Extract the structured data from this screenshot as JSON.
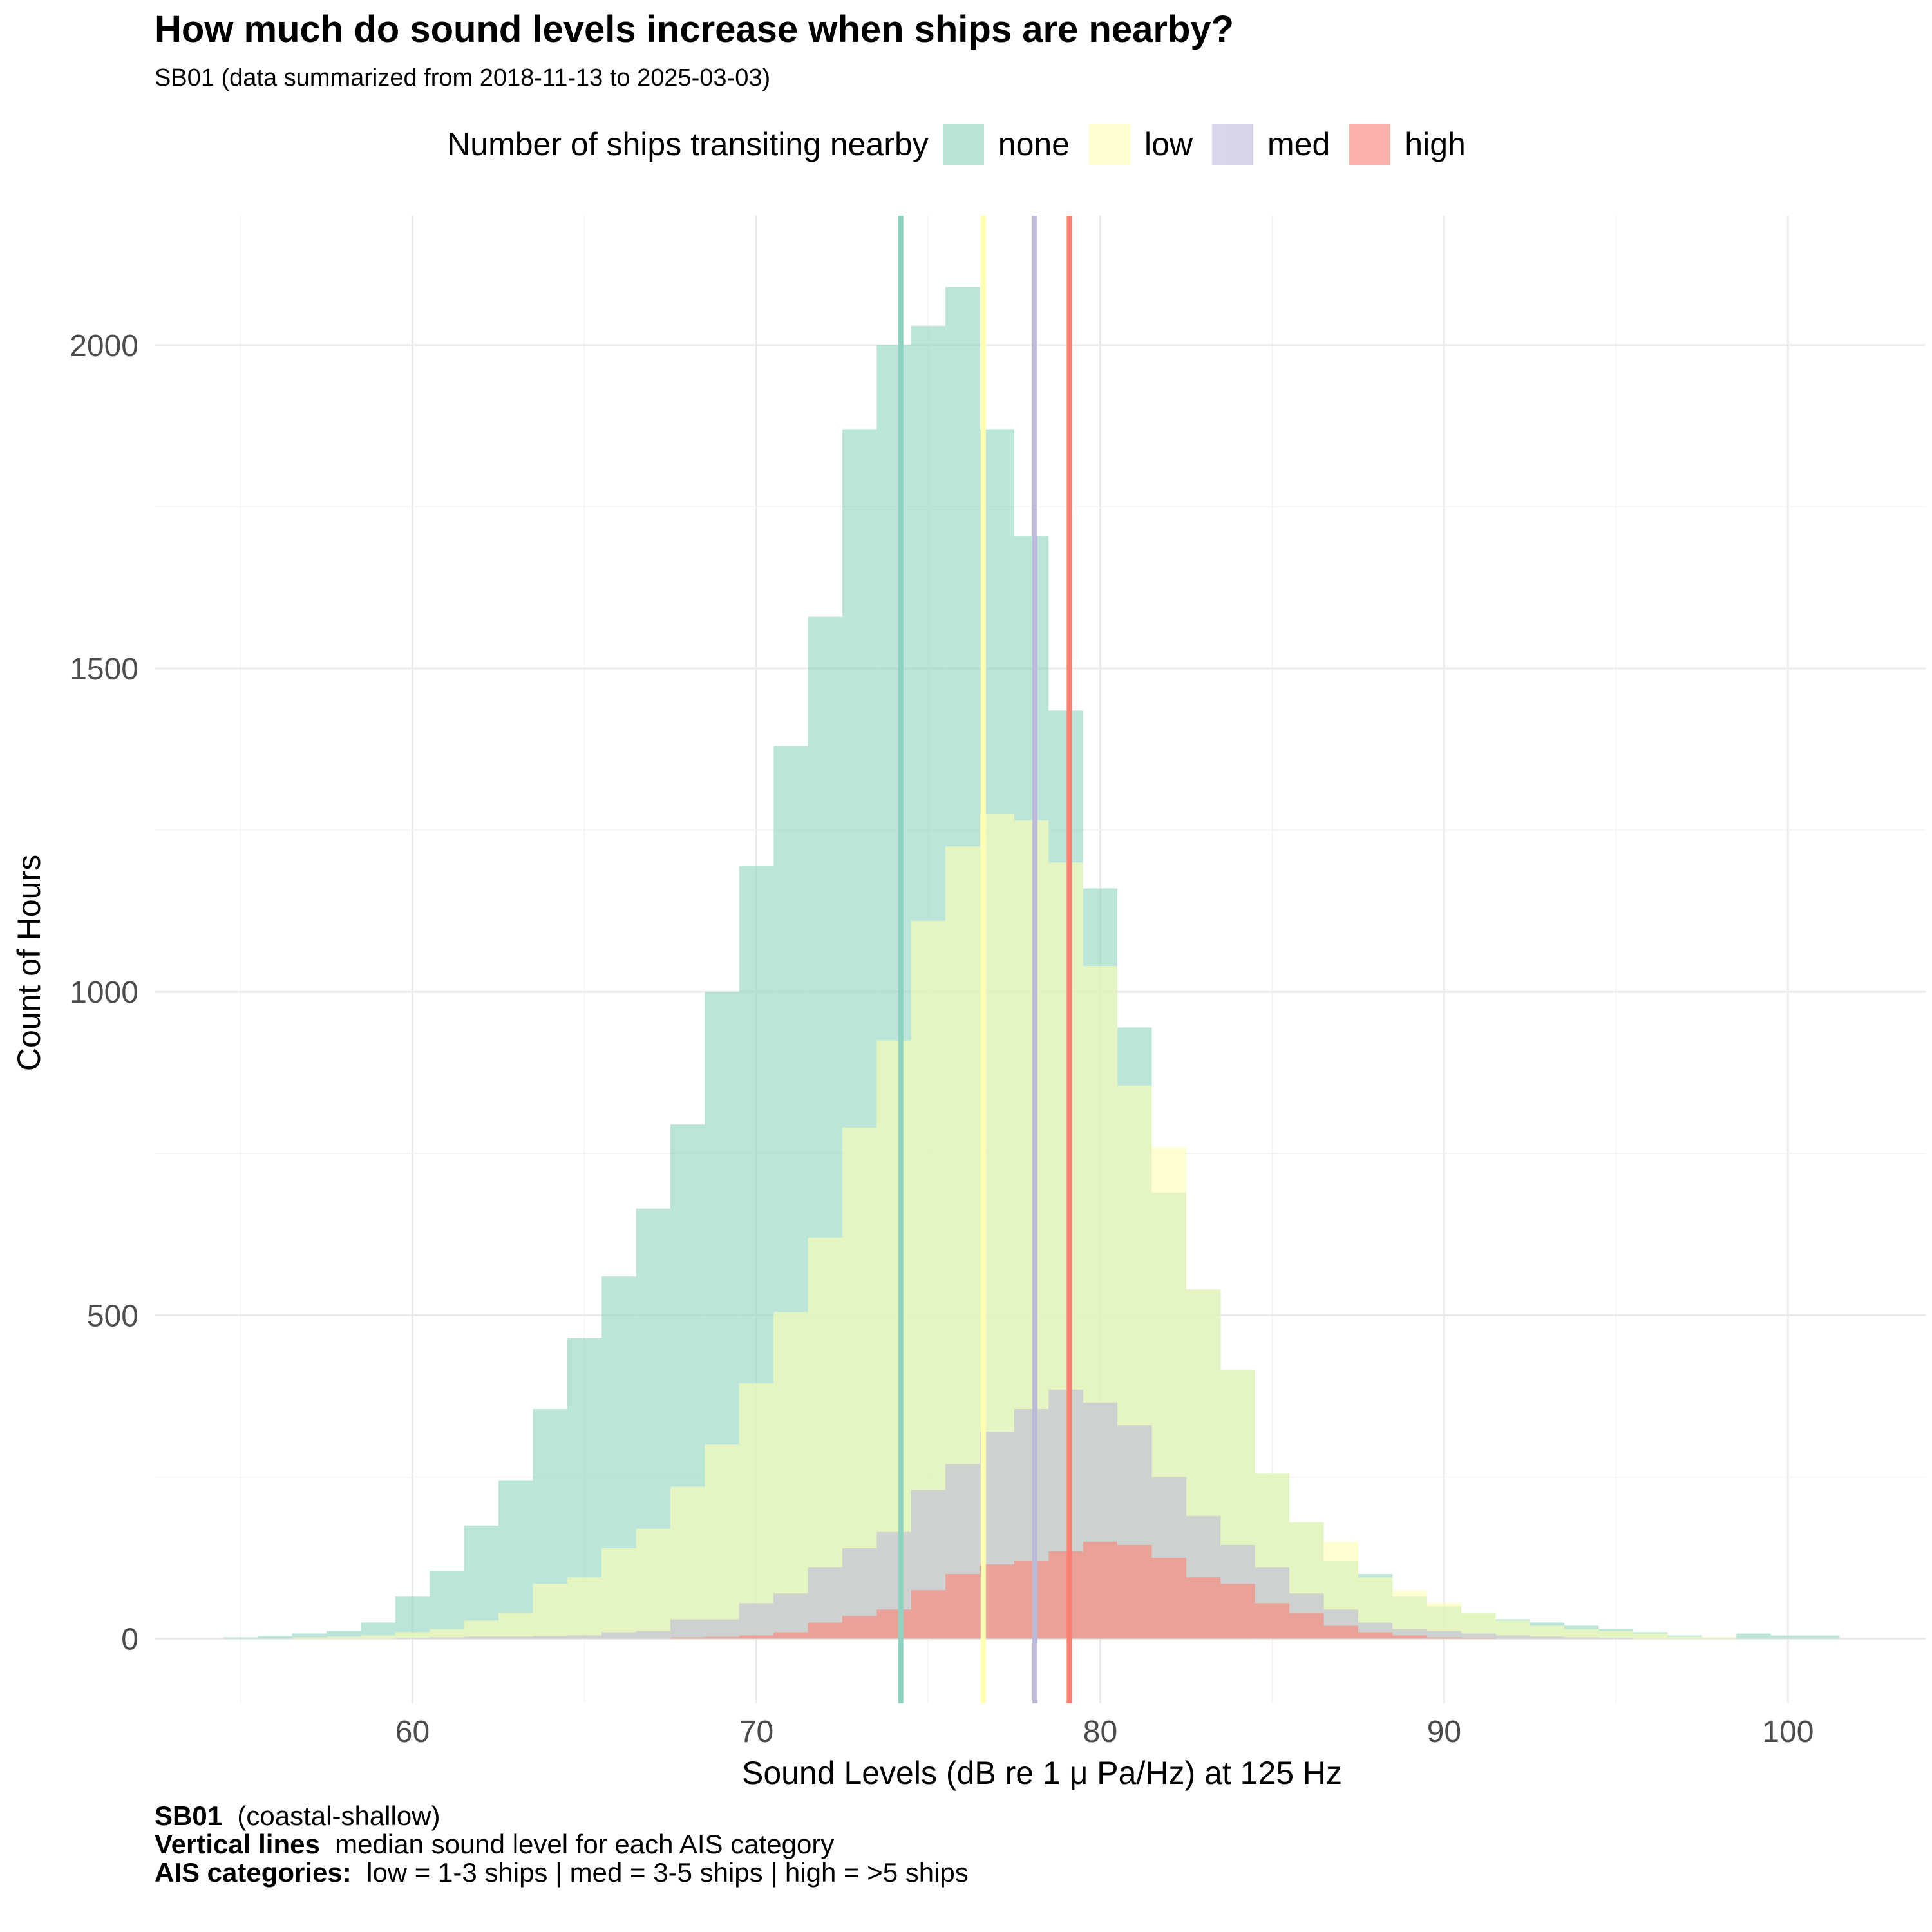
{
  "title": "How much do sound levels increase when ships are nearby?",
  "subtitle": "SB01 (data summarized from 2018-11-13 to 2025-03-03)",
  "legend": {
    "title": "Number of ships transiting nearby",
    "placement": "top",
    "items": [
      {
        "label": "none",
        "color": "#8fd3c1"
      },
      {
        "label": "low",
        "color": "#ffffb3"
      },
      {
        "label": "med",
        "color": "#bebada"
      },
      {
        "label": "high",
        "color": "#fb8072"
      }
    ]
  },
  "caption": [
    {
      "bold": "SB01",
      "text": "  (coastal-shallow)"
    },
    {
      "bold": "Vertical lines",
      "text": "  median sound level for each AIS category"
    },
    {
      "bold": "AIS categories:",
      "text": "  low = 1-3 ships | med = 3-5 ships | high = >5 ships"
    }
  ],
  "chart_data": {
    "type": "histogram",
    "xlabel": "Sound Levels (dB re 1 μ Pa/Hz) at  125 Hz",
    "ylabel": "Count of Hours",
    "xlim": [
      52.5,
      104
    ],
    "ylim": [
      -100,
      2200
    ],
    "xticks": [
      60,
      70,
      80,
      90,
      100
    ],
    "yticks": [
      0,
      500,
      1000,
      1500,
      2000
    ],
    "grid": true,
    "bin_start": 54.5,
    "bin_width": 1,
    "series": [
      {
        "name": "none",
        "color": "#8fd3c1",
        "values": [
          2,
          4,
          8,
          12,
          25,
          65,
          105,
          175,
          245,
          355,
          465,
          560,
          665,
          795,
          1000,
          1195,
          1380,
          1580,
          1870,
          2000,
          2030,
          2090,
          1870,
          1705,
          1435,
          1160,
          945,
          690,
          540,
          415,
          255,
          180,
          120,
          100,
          65,
          50,
          40,
          30,
          25,
          20,
          15,
          10,
          5,
          2,
          8,
          5,
          5,
          0
        ]
      },
      {
        "name": "low",
        "color": "#ffffb3",
        "values": [
          0,
          0,
          2,
          3,
          5,
          10,
          15,
          28,
          40,
          85,
          95,
          140,
          170,
          235,
          300,
          395,
          505,
          620,
          790,
          925,
          1110,
          1225,
          1275,
          1265,
          1200,
          1040,
          855,
          760,
          540,
          415,
          255,
          180,
          150,
          95,
          75,
          55,
          40,
          28,
          20,
          15,
          12,
          8,
          3,
          2,
          0,
          0,
          0,
          0
        ]
      },
      {
        "name": "med",
        "color": "#bebada",
        "values": [
          0,
          0,
          0,
          0,
          0,
          1,
          2,
          3,
          3,
          4,
          5,
          10,
          12,
          30,
          30,
          55,
          70,
          110,
          140,
          165,
          230,
          270,
          320,
          355,
          385,
          365,
          330,
          250,
          190,
          145,
          110,
          70,
          45,
          25,
          15,
          12,
          8,
          5,
          3,
          2,
          1,
          0,
          0,
          0,
          0,
          0,
          0,
          0
        ]
      },
      {
        "name": "high",
        "color": "#fb8072",
        "values": [
          0,
          0,
          0,
          0,
          0,
          0,
          0,
          0,
          0,
          0,
          0,
          0,
          0,
          2,
          3,
          5,
          10,
          25,
          35,
          45,
          75,
          100,
          115,
          120,
          135,
          150,
          145,
          125,
          95,
          85,
          55,
          40,
          20,
          10,
          5,
          2,
          1,
          0,
          0,
          0,
          0,
          0,
          0,
          0,
          0,
          0,
          0,
          0
        ]
      }
    ],
    "medians": [
      {
        "name": "none",
        "x": 74.2,
        "color": "#8fd3c1"
      },
      {
        "name": "low",
        "x": 76.6,
        "color": "#ffffb3"
      },
      {
        "name": "med",
        "x": 78.1,
        "color": "#bebada"
      },
      {
        "name": "high",
        "x": 79.1,
        "color": "#fb8072"
      }
    ]
  }
}
